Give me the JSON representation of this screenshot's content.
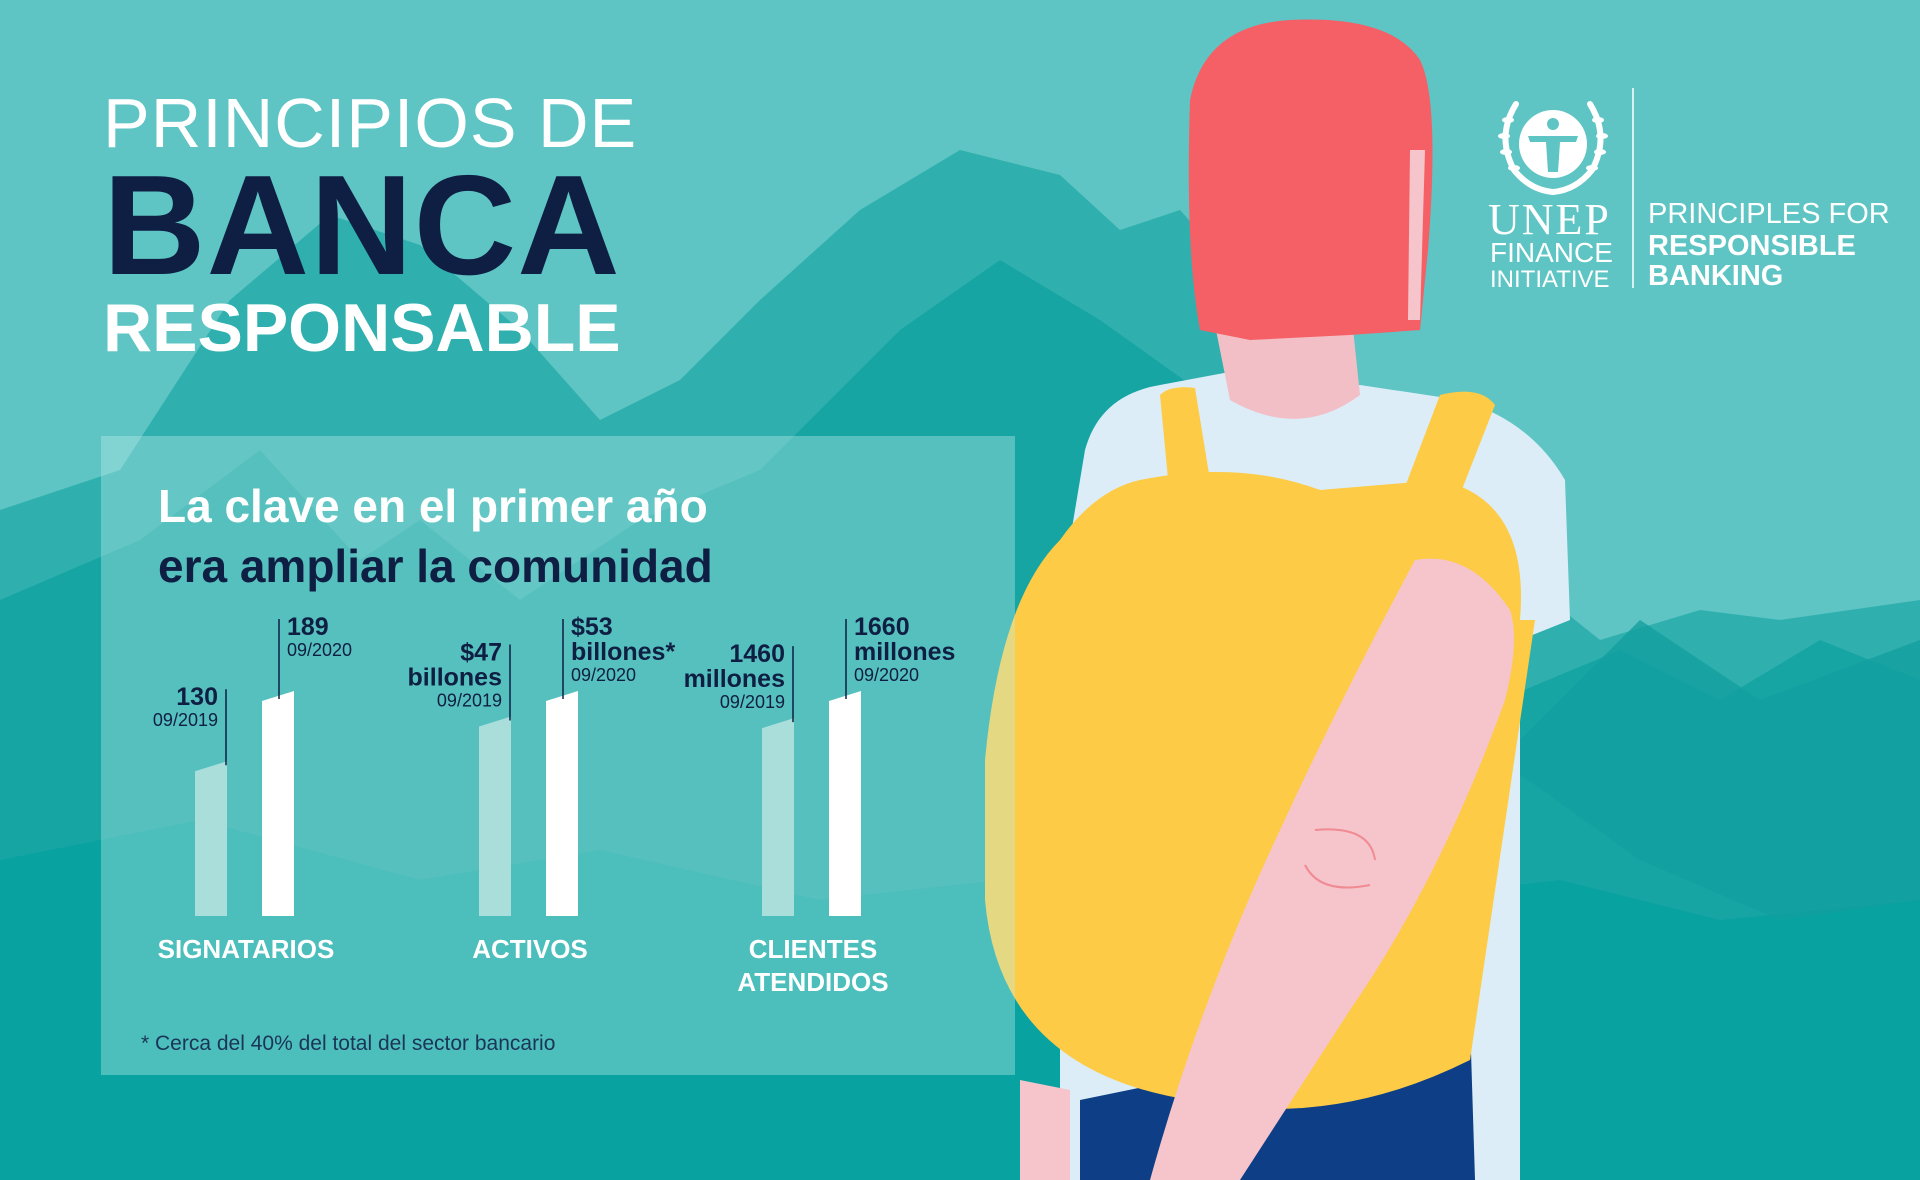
{
  "title": {
    "line1": "PRINCIPIOS DE",
    "line2": "BANCA",
    "line3": "RESPONSABLE"
  },
  "logo": {
    "unep": "UNEP",
    "finance": "FINANCE",
    "initiative": "INITIATIVE",
    "principles_line1": "PRINCIPLES FOR",
    "principles_line2": "RESPONSIBLE",
    "principles_line3": "BANKING"
  },
  "panel": {
    "title_line1": "La clave en el primer año",
    "title_line2": "era ampliar la comunidad",
    "footnote": "* Cerca del 40% del total del sector bancario"
  },
  "colors": {
    "background": "#5ec5c4",
    "navy": "#0f1f43",
    "bar_2019": "#a9dedb",
    "bar_2020": "#ffffff",
    "hair": "#f46065",
    "backpack": "#fdcb45",
    "skin": "#f5c5cb",
    "shirt": "#dcedf7"
  },
  "chart_data": {
    "type": "bar",
    "groups": [
      {
        "category": "SIGNATARIOS",
        "bars": [
          {
            "value": 130,
            "value_label": [
              "130"
            ],
            "date": "09/2019"
          },
          {
            "value": 189,
            "value_label": [
              "189"
            ],
            "date": "09/2020"
          }
        ]
      },
      {
        "category": "ACTIVOS",
        "bars": [
          {
            "value": 47,
            "value_label": [
              "$47",
              "billones"
            ],
            "date": "09/2019"
          },
          {
            "value": 53,
            "value_label": [
              "$53",
              "billones*"
            ],
            "date": "09/2020"
          }
        ]
      },
      {
        "category_lines": [
          "CLIENTES",
          "ATENDIDOS"
        ],
        "bars": [
          {
            "value": 1460,
            "value_label": [
              "1460",
              "millones"
            ],
            "date": "09/2019"
          },
          {
            "value": 1660,
            "value_label": [
              "1660",
              "millones"
            ],
            "date": "09/2020"
          }
        ]
      }
    ]
  }
}
